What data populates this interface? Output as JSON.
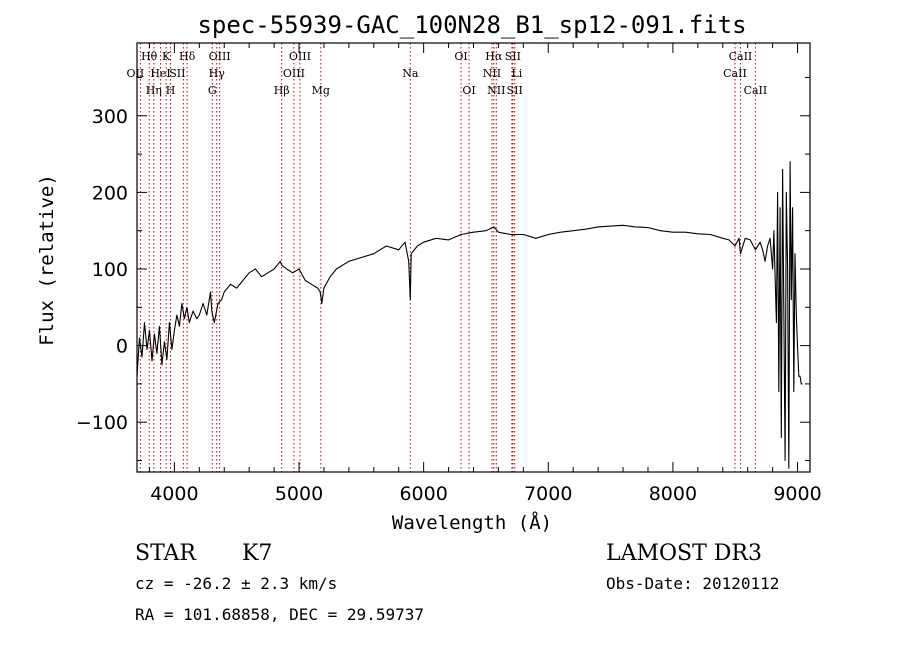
{
  "chart_data": {
    "type": "line",
    "title": "spec-55939-GAC_100N28_B1_sp12-091.fits",
    "xlabel": "Wavelength (Å)",
    "ylabel": "Flux (relative)",
    "xlim": [
      3700,
      9100
    ],
    "ylim": [
      -165,
      395
    ],
    "x_ticks": [
      4000,
      5000,
      6000,
      7000,
      8000,
      9000
    ],
    "y_ticks": [
      -100,
      0,
      100,
      200,
      300
    ],
    "grid": false,
    "series": [
      {
        "x": [
          3700,
          3720,
          3740,
          3760,
          3780,
          3800,
          3820,
          3840,
          3860,
          3880,
          3900,
          3920,
          3940,
          3960,
          3980,
          4000,
          4020,
          4040,
          4060,
          4080,
          4100,
          4120,
          4150,
          4180,
          4200,
          4230,
          4260,
          4290,
          4300,
          4320,
          4350,
          4380,
          4400,
          4450,
          4500,
          4550,
          4600,
          4650,
          4700,
          4750,
          4800,
          4850,
          4861,
          4900,
          4950,
          5000,
          5050,
          5100,
          5150,
          5170,
          5183,
          5200,
          5250,
          5300,
          5400,
          5500,
          5600,
          5700,
          5800,
          5850,
          5880,
          5893,
          5900,
          5950,
          6000,
          6100,
          6200,
          6300,
          6400,
          6500,
          6563,
          6600,
          6700,
          6800,
          6900,
          7000,
          7100,
          7200,
          7300,
          7400,
          7500,
          7600,
          7700,
          7800,
          7900,
          8000,
          8100,
          8200,
          8300,
          8400,
          8450,
          8498,
          8530,
          8542,
          8580,
          8620,
          8662,
          8700,
          8720,
          8740,
          8760,
          8780,
          8800,
          8810,
          8820,
          8830,
          8840,
          8850,
          8860,
          8870,
          8880,
          8890,
          8900,
          8910,
          8920,
          8930,
          8940,
          8950,
          8960,
          8970,
          8980,
          8990,
          9000,
          9010,
          9020,
          9030,
          9040
        ],
        "y": [
          -40,
          10,
          -15,
          30,
          -5,
          20,
          -20,
          15,
          -10,
          25,
          -25,
          5,
          -18,
          30,
          -5,
          20,
          40,
          25,
          55,
          35,
          50,
          30,
          45,
          35,
          40,
          55,
          40,
          70,
          45,
          30,
          55,
          60,
          70,
          80,
          75,
          85,
          95,
          100,
          90,
          95,
          100,
          110,
          105,
          100,
          95,
          100,
          85,
          80,
          75,
          70,
          55,
          75,
          90,
          100,
          110,
          115,
          120,
          130,
          125,
          135,
          110,
          60,
          120,
          130,
          135,
          140,
          138,
          145,
          148,
          150,
          155,
          148,
          145,
          145,
          140,
          145,
          148,
          150,
          152,
          155,
          156,
          157,
          155,
          154,
          150,
          148,
          148,
          146,
          145,
          140,
          138,
          130,
          140,
          120,
          140,
          138,
          125,
          135,
          125,
          110,
          130,
          140,
          100,
          150,
          90,
          30,
          200,
          -60,
          180,
          -120,
          230,
          50,
          -150,
          200,
          100,
          -160,
          240,
          60,
          180,
          -60,
          120,
          40,
          0,
          -40,
          -40,
          -50,
          -50
        ]
      }
    ],
    "lines": [
      {
        "label": "OII",
        "wave": 3727,
        "row": 1,
        "offset": -5
      },
      {
        "label": "Hθ",
        "wave": 3798,
        "row": 0,
        "offset": 0
      },
      {
        "label": "Hη",
        "wave": 3835,
        "row": 2,
        "offset": 0
      },
      {
        "label": "HeI",
        "wave": 3889,
        "row": 1,
        "offset": 0
      },
      {
        "label": "K",
        "wave": 3934,
        "row": 0,
        "offset": 0
      },
      {
        "label": "H",
        "wave": 3969,
        "row": 2,
        "offset": 0
      },
      {
        "label": "SII",
        "wave": 4072,
        "row": 1,
        "offset": -6
      },
      {
        "label": "Hδ",
        "wave": 4102,
        "row": 0,
        "offset": 0
      },
      {
        "label": "G",
        "wave": 4304,
        "row": 2,
        "offset": 0
      },
      {
        "label": "Hγ",
        "wave": 4340,
        "row": 1,
        "offset": 0
      },
      {
        "label": "OIII",
        "wave": 4363,
        "row": 0,
        "offset": 0
      },
      {
        "label": "Hβ",
        "wave": 4861,
        "row": 2,
        "offset": 0
      },
      {
        "label": "OIII",
        "wave": 4959,
        "row": 1,
        "offset": 0
      },
      {
        "label": "OIII",
        "wave": 5007,
        "row": 0,
        "offset": 0
      },
      {
        "label": "Mg",
        "wave": 5175,
        "row": 2,
        "offset": 0
      },
      {
        "label": "Na",
        "wave": 5893,
        "row": 1,
        "offset": 0
      },
      {
        "label": "OI",
        "wave": 6300,
        "row": 0,
        "offset": 0
      },
      {
        "label": "OI",
        "wave": 6364,
        "row": 2,
        "offset": 0
      },
      {
        "label": "NII",
        "wave": 6548,
        "row": 1,
        "offset": 0
      },
      {
        "label": "Hα",
        "wave": 6563,
        "row": 0,
        "offset": 0
      },
      {
        "label": "NII",
        "wave": 6583,
        "row": 2,
        "offset": 0
      },
      {
        "label": "SII",
        "wave": 6716,
        "row": 0,
        "offset": 0
      },
      {
        "label": "Li",
        "wave": 6708,
        "row": 1,
        "offset": 5
      },
      {
        "label": "SII",
        "wave": 6731,
        "row": 2,
        "offset": 0
      },
      {
        "label": "CaII",
        "wave": 8498,
        "row": 1,
        "offset": 0
      },
      {
        "label": "CaII",
        "wave": 8542,
        "row": 0,
        "offset": 0
      },
      {
        "label": "CaII",
        "wave": 8662,
        "row": 2,
        "offset": 0
      }
    ]
  },
  "info": {
    "class": "STAR",
    "subclass": "K7",
    "survey": "LAMOST DR3",
    "cz": "cz = -26.2 ± 2.3 km/s",
    "obs_date": "Obs-Date: 20120112",
    "coords": "RA = 101.68858, DEC =  29.59737"
  }
}
